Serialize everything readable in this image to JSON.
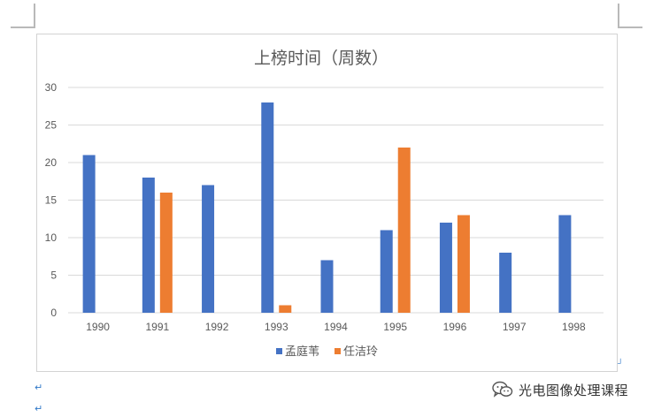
{
  "chart_data": {
    "type": "bar",
    "title": "上榜时间（周数）",
    "categories": [
      "1990",
      "1991",
      "1992",
      "1993",
      "1994",
      "1995",
      "1996",
      "1997",
      "1998"
    ],
    "series": [
      {
        "name": "孟庭苇",
        "color": "#4472c4",
        "values": [
          21,
          18,
          17,
          28,
          7,
          11,
          12,
          8,
          13
        ]
      },
      {
        "name": "任洁玲",
        "color": "#ed7d31",
        "values": [
          null,
          16,
          null,
          1,
          null,
          22,
          13,
          null,
          null
        ]
      }
    ],
    "ylim": [
      0,
      30
    ],
    "yticks": [
      0,
      5,
      10,
      15,
      20,
      25,
      30
    ],
    "grid": true,
    "legend_position": "bottom"
  },
  "marks": {
    "paragraph": "↵"
  },
  "watermark": {
    "text": "光电图像处理课程",
    "icon": "wechat-icon"
  }
}
